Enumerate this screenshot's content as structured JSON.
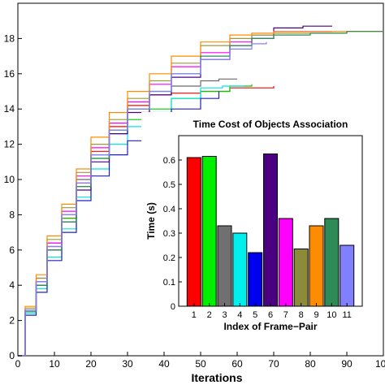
{
  "chart_data": [
    {
      "type": "line",
      "title": "",
      "xlabel": "Iterations",
      "ylabel": "",
      "xlim": [
        0,
        100
      ],
      "ylim": [
        0,
        20
      ],
      "xticks": [
        0,
        10,
        20,
        30,
        40,
        50,
        60,
        70,
        80,
        90,
        100
      ],
      "yticks": [
        0,
        2,
        4,
        6,
        8,
        10,
        12,
        14,
        16,
        18
      ],
      "grid": false,
      "series": [
        {
          "color": "#ff0000",
          "x": [
            0,
            2,
            5,
            8,
            12,
            16,
            20,
            25,
            30,
            36,
            42,
            50,
            58,
            66,
            70
          ],
          "y": [
            0,
            2.6,
            4.2,
            6.2,
            7.8,
            9.8,
            11.6,
            13.0,
            14.2,
            14.8,
            14.9,
            15.0,
            15.2,
            15.2,
            15.3
          ]
        },
        {
          "color": "#00cc00",
          "x": [
            0,
            2,
            5,
            8,
            12,
            16,
            20,
            25,
            30,
            36,
            42,
            50,
            58,
            64
          ],
          "y": [
            0,
            2.5,
            4.0,
            6.0,
            7.8,
            9.6,
            11.2,
            12.6,
            13.4,
            14.0,
            14.6,
            15.0,
            15.3,
            15.4
          ]
        },
        {
          "color": "#6b6b6b",
          "x": [
            0,
            2,
            5,
            8,
            12,
            16,
            20,
            25,
            30,
            36,
            42,
            50,
            55,
            60
          ],
          "y": [
            0,
            2.6,
            4.2,
            6.4,
            8.0,
            10.0,
            11.4,
            12.8,
            14.0,
            14.8,
            15.3,
            15.6,
            15.7,
            15.7
          ]
        },
        {
          "color": "#00e5e5",
          "x": [
            0,
            2,
            5,
            8,
            12,
            16,
            20,
            25,
            30,
            36,
            42,
            50,
            56,
            62
          ],
          "y": [
            0,
            2.4,
            3.8,
            5.6,
            7.2,
            9.0,
            10.6,
            12.0,
            13.0,
            13.8,
            14.6,
            15.2,
            15.3,
            15.3
          ]
        },
        {
          "color": "#2020c0",
          "x": [
            0,
            2,
            5,
            8,
            12,
            16,
            20,
            25,
            30,
            36,
            42,
            50,
            55
          ],
          "y": [
            0,
            2.3,
            3.6,
            5.4,
            7.0,
            8.8,
            10.2,
            11.4,
            12.2,
            13.0,
            14.0,
            14.6,
            15.0
          ]
        },
        {
          "color": "#4b0082",
          "x": [
            0,
            2,
            5,
            8,
            12,
            16,
            20,
            25,
            30,
            36,
            42,
            50,
            58,
            64,
            70,
            78,
            86
          ],
          "y": [
            0,
            2.6,
            4.0,
            6.0,
            7.6,
            9.4,
            11.0,
            12.6,
            13.8,
            14.8,
            15.8,
            16.8,
            17.6,
            18.0,
            18.6,
            18.7,
            18.7
          ]
        },
        {
          "color": "#ff00ff",
          "x": [
            0,
            2,
            5,
            8,
            12,
            16,
            20,
            25,
            30,
            36,
            42,
            50,
            58,
            64,
            70,
            78,
            86
          ],
          "y": [
            0,
            2.6,
            4.4,
            6.4,
            8.2,
            10.2,
            11.8,
            13.2,
            14.4,
            15.4,
            16.4,
            17.2,
            17.8,
            18.2,
            18.4,
            18.4,
            18.4
          ]
        },
        {
          "color": "#9a9a3c",
          "x": [
            0,
            2,
            5,
            8,
            12,
            16,
            20,
            25,
            30,
            36,
            42,
            50,
            58,
            64,
            70,
            80,
            90,
            100
          ],
          "y": [
            0,
            2.7,
            4.4,
            6.6,
            8.4,
            10.4,
            12.0,
            13.4,
            14.6,
            15.6,
            16.6,
            17.6,
            18.0,
            18.2,
            18.3,
            18.3,
            18.4,
            18.4
          ]
        },
        {
          "color": "#ff8c00",
          "x": [
            0,
            2,
            5,
            8,
            12,
            16,
            20,
            25,
            30,
            36,
            42,
            50,
            58,
            64,
            70,
            80,
            90,
            100
          ],
          "y": [
            0,
            2.8,
            4.6,
            6.8,
            8.6,
            10.6,
            12.4,
            13.8,
            15.0,
            16.0,
            17.0,
            17.8,
            18.2,
            18.3,
            18.4,
            18.4,
            18.4,
            18.4
          ]
        },
        {
          "color": "#2e8b57",
          "x": [
            0,
            2,
            5,
            8,
            12,
            16,
            20,
            25,
            30,
            36,
            42,
            50,
            58,
            64,
            70,
            80,
            90,
            100
          ],
          "y": [
            0,
            2.5,
            4.0,
            6.0,
            7.6,
            9.6,
            11.2,
            12.8,
            14.0,
            15.0,
            16.0,
            17.0,
            17.6,
            18.0,
            18.2,
            18.3,
            18.4,
            18.4
          ]
        },
        {
          "color": "#8080ff",
          "x": [
            0,
            2,
            5,
            8,
            12,
            16,
            20,
            25,
            30,
            36,
            42,
            50,
            58,
            64,
            68
          ],
          "y": [
            0,
            2.6,
            4.2,
            6.2,
            8.0,
            9.8,
            11.4,
            12.8,
            14.0,
            15.0,
            16.0,
            16.8,
            17.4,
            17.7,
            17.8
          ]
        }
      ]
    },
    {
      "type": "bar",
      "title": "Time Cost of Objects Association",
      "xlabel": "Index of Frame−Pair",
      "ylabel": "Time (s)",
      "ylim": [
        0,
        0.7
      ],
      "yticks": [
        "0",
        "0.1",
        "0.2",
        "0.3",
        "0.4",
        "0.5",
        "0.6"
      ],
      "grid": false,
      "categories": [
        "1",
        "2",
        "3",
        "4",
        "5",
        "6",
        "7",
        "8",
        "9",
        "10",
        "11"
      ],
      "values": [
        0.61,
        0.615,
        0.33,
        0.3,
        0.22,
        0.625,
        0.36,
        0.235,
        0.33,
        0.36,
        0.25
      ],
      "colors": [
        "#ff0000",
        "#00ee00",
        "#707070",
        "#00eeee",
        "#0000ee",
        "#4b0082",
        "#ff00ff",
        "#8b8b3a",
        "#ff8c00",
        "#2e8b57",
        "#8080ff"
      ]
    }
  ]
}
